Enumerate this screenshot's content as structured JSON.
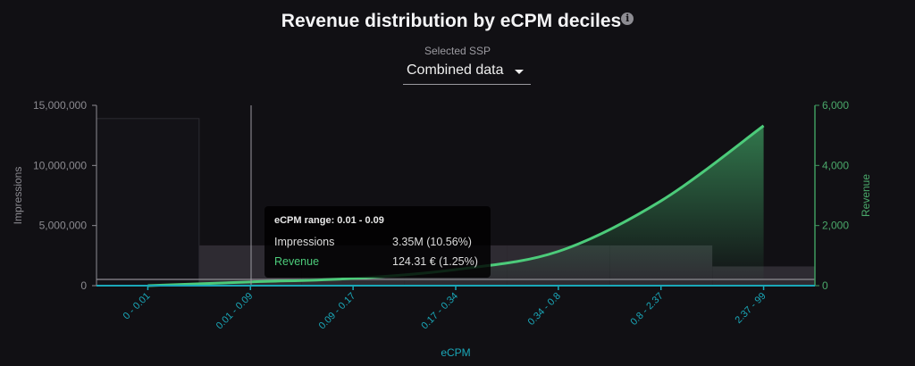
{
  "header": {
    "title": "Revenue distribution by eCPM deciles",
    "info_icon": "info-icon",
    "info_glyph": "i"
  },
  "ssp_selector": {
    "label": "Selected SSP",
    "value": "Combined data"
  },
  "tooltip": {
    "title": "eCPM range: 0.01 - 0.09",
    "rows": [
      {
        "label": "Impressions",
        "value": "3.35M (10.56%)"
      },
      {
        "label": "Revenue",
        "value": "124.31 € (1.25%)"
      }
    ]
  },
  "colors": {
    "background": "#111014",
    "bars": "#2e2b32",
    "revenue": "#4ccb7a",
    "x_axis": "#1aa7b8"
  },
  "chart_data": {
    "type": "bar+line",
    "xlabel": "eCPM",
    "categories": [
      "0 - 0.01",
      "0.01 - 0.09",
      "0.09 - 0.17",
      "0.17 - 0.34",
      "0.34 - 0.8",
      "0.8 - 2.37",
      "2.37 - 99"
    ],
    "y_left": {
      "label": "Impressions",
      "ylim": [
        0,
        15000000
      ],
      "ticks": [
        "0",
        "5,000,000",
        "10,000,000",
        "15,000,000"
      ]
    },
    "y_right": {
      "label": "Revenue",
      "ylim": [
        0,
        6000
      ],
      "ticks": [
        "0",
        "2,000",
        "4,000",
        "6,000"
      ]
    },
    "series": [
      {
        "name": "Impressions",
        "type": "bar",
        "axis": "left",
        "values": [
          13900000,
          3350000,
          3350000,
          3350000,
          3350000,
          3350000,
          1600000
        ]
      },
      {
        "name": "Revenue",
        "type": "area",
        "axis": "right",
        "values": [
          0,
          124.31,
          240,
          535,
          1140,
          2820,
          5320
        ]
      }
    ],
    "highlighted_category": "0.01 - 0.09",
    "grid": false
  }
}
